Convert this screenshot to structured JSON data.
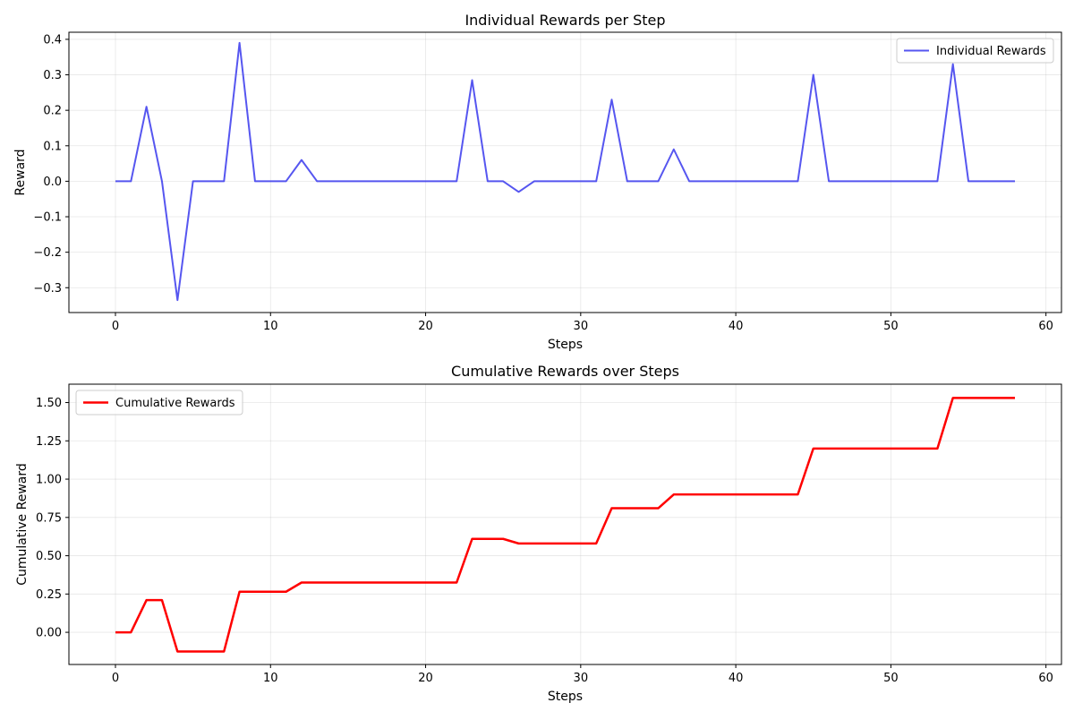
{
  "chart_data": [
    {
      "type": "line",
      "title": "Individual Rewards per Step",
      "xlabel": "Steps",
      "ylabel": "Reward",
      "xlim": [
        -3,
        61
      ],
      "ylim": [
        -0.37,
        0.42
      ],
      "xticks": [
        0,
        10,
        20,
        30,
        40,
        50,
        60
      ],
      "xtick_labels": [
        "0",
        "10",
        "20",
        "30",
        "40",
        "50",
        "60"
      ],
      "yticks": [
        -0.3,
        -0.2,
        -0.1,
        0.0,
        0.1,
        0.2,
        0.3,
        0.4
      ],
      "ytick_labels": [
        "−0.3",
        "−0.2",
        "−0.1",
        "0.0",
        "0.1",
        "0.2",
        "0.3",
        "0.4"
      ],
      "grid": true,
      "legend_position": "top-right",
      "series": [
        {
          "name": "Individual Rewards",
          "color": "#4444ee",
          "x": [
            0,
            1,
            2,
            3,
            4,
            5,
            6,
            7,
            8,
            9,
            10,
            11,
            12,
            13,
            14,
            15,
            16,
            17,
            18,
            19,
            20,
            21,
            22,
            23,
            24,
            25,
            26,
            27,
            28,
            29,
            30,
            31,
            32,
            33,
            34,
            35,
            36,
            37,
            38,
            39,
            40,
            41,
            42,
            43,
            44,
            45,
            46,
            47,
            48,
            49,
            50,
            51,
            52,
            53,
            54,
            55,
            56,
            57,
            58
          ],
          "values": [
            0,
            0,
            0.21,
            0,
            -0.335,
            0,
            0,
            0,
            0.39,
            0,
            0,
            0,
            0.06,
            0,
            0,
            0,
            0,
            0,
            0,
            0,
            0,
            0,
            0,
            0.285,
            0,
            0,
            -0.03,
            0,
            0,
            0,
            0,
            0,
            0.23,
            0,
            0,
            0,
            0.09,
            0,
            0,
            0,
            0,
            0,
            0,
            0,
            0,
            0.3,
            0,
            0,
            0,
            0,
            0,
            0,
            0,
            0,
            0.33,
            0,
            0,
            0,
            0
          ]
        }
      ]
    },
    {
      "type": "line",
      "title": "Cumulative Rewards over Steps",
      "xlabel": "Steps",
      "ylabel": "Cumulative Reward",
      "xlim": [
        -3,
        61
      ],
      "ylim": [
        -0.21,
        1.62
      ],
      "xticks": [
        0,
        10,
        20,
        30,
        40,
        50,
        60
      ],
      "xtick_labels": [
        "0",
        "10",
        "20",
        "30",
        "40",
        "50",
        "60"
      ],
      "yticks": [
        0.0,
        0.25,
        0.5,
        0.75,
        1.0,
        1.25,
        1.5
      ],
      "ytick_labels": [
        "0.00",
        "0.25",
        "0.50",
        "0.75",
        "1.00",
        "1.25",
        "1.50"
      ],
      "grid": true,
      "legend_position": "top-left",
      "series": [
        {
          "name": "Cumulative Rewards",
          "color": "#ff0000",
          "x": [
            0,
            1,
            2,
            3,
            4,
            5,
            6,
            7,
            8,
            9,
            10,
            11,
            12,
            13,
            14,
            15,
            16,
            17,
            18,
            19,
            20,
            21,
            22,
            23,
            24,
            25,
            26,
            27,
            28,
            29,
            30,
            31,
            32,
            33,
            34,
            35,
            36,
            37,
            38,
            39,
            40,
            41,
            42,
            43,
            44,
            45,
            46,
            47,
            48,
            49,
            50,
            51,
            52,
            53,
            54,
            55,
            56,
            57,
            58
          ],
          "values": [
            0,
            0,
            0.21,
            0.21,
            -0.125,
            -0.125,
            -0.125,
            -0.125,
            0.265,
            0.265,
            0.265,
            0.265,
            0.325,
            0.325,
            0.325,
            0.325,
            0.325,
            0.325,
            0.325,
            0.325,
            0.325,
            0.325,
            0.325,
            0.61,
            0.61,
            0.61,
            0.58,
            0.58,
            0.58,
            0.58,
            0.58,
            0.58,
            0.81,
            0.81,
            0.81,
            0.81,
            0.9,
            0.9,
            0.9,
            0.9,
            0.9,
            0.9,
            0.9,
            0.9,
            0.9,
            1.2,
            1.2,
            1.2,
            1.2,
            1.2,
            1.2,
            1.2,
            1.2,
            1.2,
            1.53,
            1.53,
            1.53,
            1.53,
            1.53
          ]
        }
      ]
    }
  ]
}
